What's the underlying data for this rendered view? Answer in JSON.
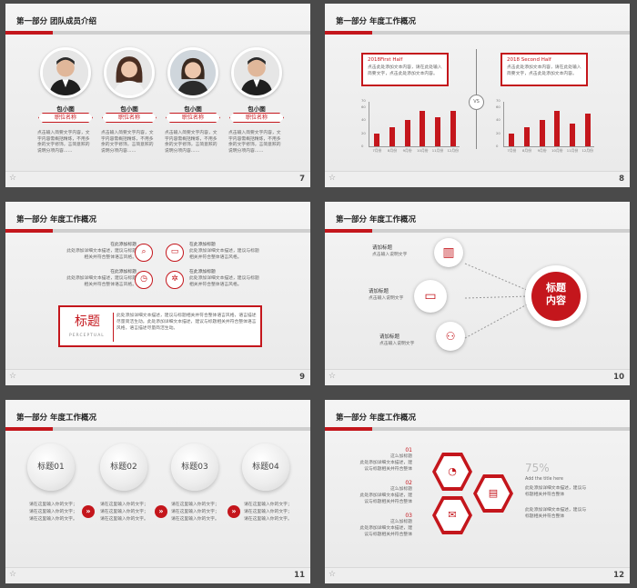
{
  "colors": {
    "accent": "#c4161c",
    "bg": "#4a4a4a"
  },
  "slides": {
    "s7": {
      "title": "第一部分 团队成员介绍",
      "number": "7",
      "members": [
        {
          "name": "包小图",
          "role": "职位名称",
          "desc": "点击输入简要文字内容，文字内容需概括精炼，不用多余的文字修饰，言简意赅的说明分项内容……"
        },
        {
          "name": "包小图",
          "role": "职位名称",
          "desc": "点击输入简要文字内容，文字内容需概括精炼，不用多余的文字修饰，言简意赅的说明分项内容……"
        },
        {
          "name": "包小图",
          "role": "职位名称",
          "desc": "点击输入简要文字内容，文字内容需概括精炼，不用多余的文字修饰，言简意赅的说明分项内容……"
        },
        {
          "name": "包小图",
          "role": "职位名称",
          "desc": "点击输入简要文字内容，文字内容需概括精炼，不用多余的文字修饰，言简意赅的说明分项内容……"
        }
      ]
    },
    "s8": {
      "title": "第一部分 年度工作概况",
      "number": "8",
      "vs": "VS",
      "box1": {
        "head": "2018First Half",
        "body": "点击此处添加文本内容，请在此处输入简要文字，点击此处添加文本内容。"
      },
      "box2": {
        "head": "2018 Second Half",
        "body": "点击此处添加文本内容，请在此处输入简要文字，点击此处添加文本内容。"
      }
    },
    "s9": {
      "title": "第一部分 年度工作概况",
      "number": "9",
      "items": [
        {
          "head": "在此添加标题",
          "body": "此处添加详细文本描述，建议与标题相关并符合整体语言风格。"
        },
        {
          "head": "在此添加标题",
          "body": "此处添加详细文本描述，建议与标题相关并符合整体语言风格。"
        },
        {
          "head": "在此添加标题",
          "body": "此处添加详细文本描述，建议与标题相关并符合整体语言风格。"
        },
        {
          "head": "在此添加标题",
          "body": "此处添加详细文本描述，建议与标题相关并符合整体语言风格。"
        }
      ],
      "banner_title": "标题",
      "banner_sub": "PERCEPTUAL",
      "banner_body": "此处添加详细文本描述，建议与标题相关并符合整体语言风格，语言描述尽量简洁生动。此处添加详细文本描述，建议与标题相关并符合整体语言风格，语言描述尽量简洁生动。"
    },
    "s10": {
      "title": "第一部分 年度工作概况",
      "number": "10",
      "items": [
        {
          "head": "请加标题",
          "sub": "点击输入说明文字"
        },
        {
          "head": "请加标题",
          "sub": "点击输入说明文字"
        },
        {
          "head": "请加标题",
          "sub": "点击输入说明文字"
        }
      ],
      "center": "标题内容"
    },
    "s11": {
      "title": "第一部分 年度工作概况",
      "number": "11",
      "discs": [
        "标题01",
        "标题02",
        "标题03",
        "标题04"
      ],
      "texts": [
        "请在这里输入你的文字；请在这里输入你的文字；请在这里输入你的文字。",
        "请在这里输入你的文字；请在这里输入你的文字；请在这里输入你的文字。",
        "请在这里输入你的文字；请在这里输入你的文字；请在这里输入你的文字。",
        "请在这里输入你的文字；请在这里输入你的文字；请在这里输入你的文字。"
      ]
    },
    "s12": {
      "title": "第一部分 年度工作概况",
      "number": "12",
      "items": [
        {
          "num": "01",
          "head": "这么加标题",
          "body": "此处添加详细文本描述，建议与标题相关并符合整体"
        },
        {
          "num": "02",
          "head": "这么加标题",
          "body": "此处添加详细文本描述，建议与标题相关并符合整体"
        },
        {
          "num": "03",
          "head": "这么加标题",
          "body": "此处添加详细文本描述，建议与标题相关并符合整体"
        }
      ],
      "pct": "75%",
      "pct_label": "Add the title here",
      "right1": "此处添加详细文本描述，建议与标题相关并符合整体",
      "right2": "此处添加详细文本描述，建议与标题相关并符合整体"
    }
  },
  "chart_data": [
    {
      "type": "bar",
      "categories": [
        "7月份",
        "8月份",
        "9月份",
        "10月份",
        "11月份",
        "12月份"
      ],
      "values": [
        20,
        30,
        40,
        55,
        45,
        55
      ],
      "ylim": [
        0,
        70
      ]
    },
    {
      "type": "bar",
      "categories": [
        "7月份",
        "8月份",
        "9月份",
        "10月份",
        "11月份",
        "12月份"
      ],
      "values": [
        20,
        30,
        40,
        55,
        35,
        50
      ],
      "ylim": [
        0,
        70
      ]
    }
  ]
}
